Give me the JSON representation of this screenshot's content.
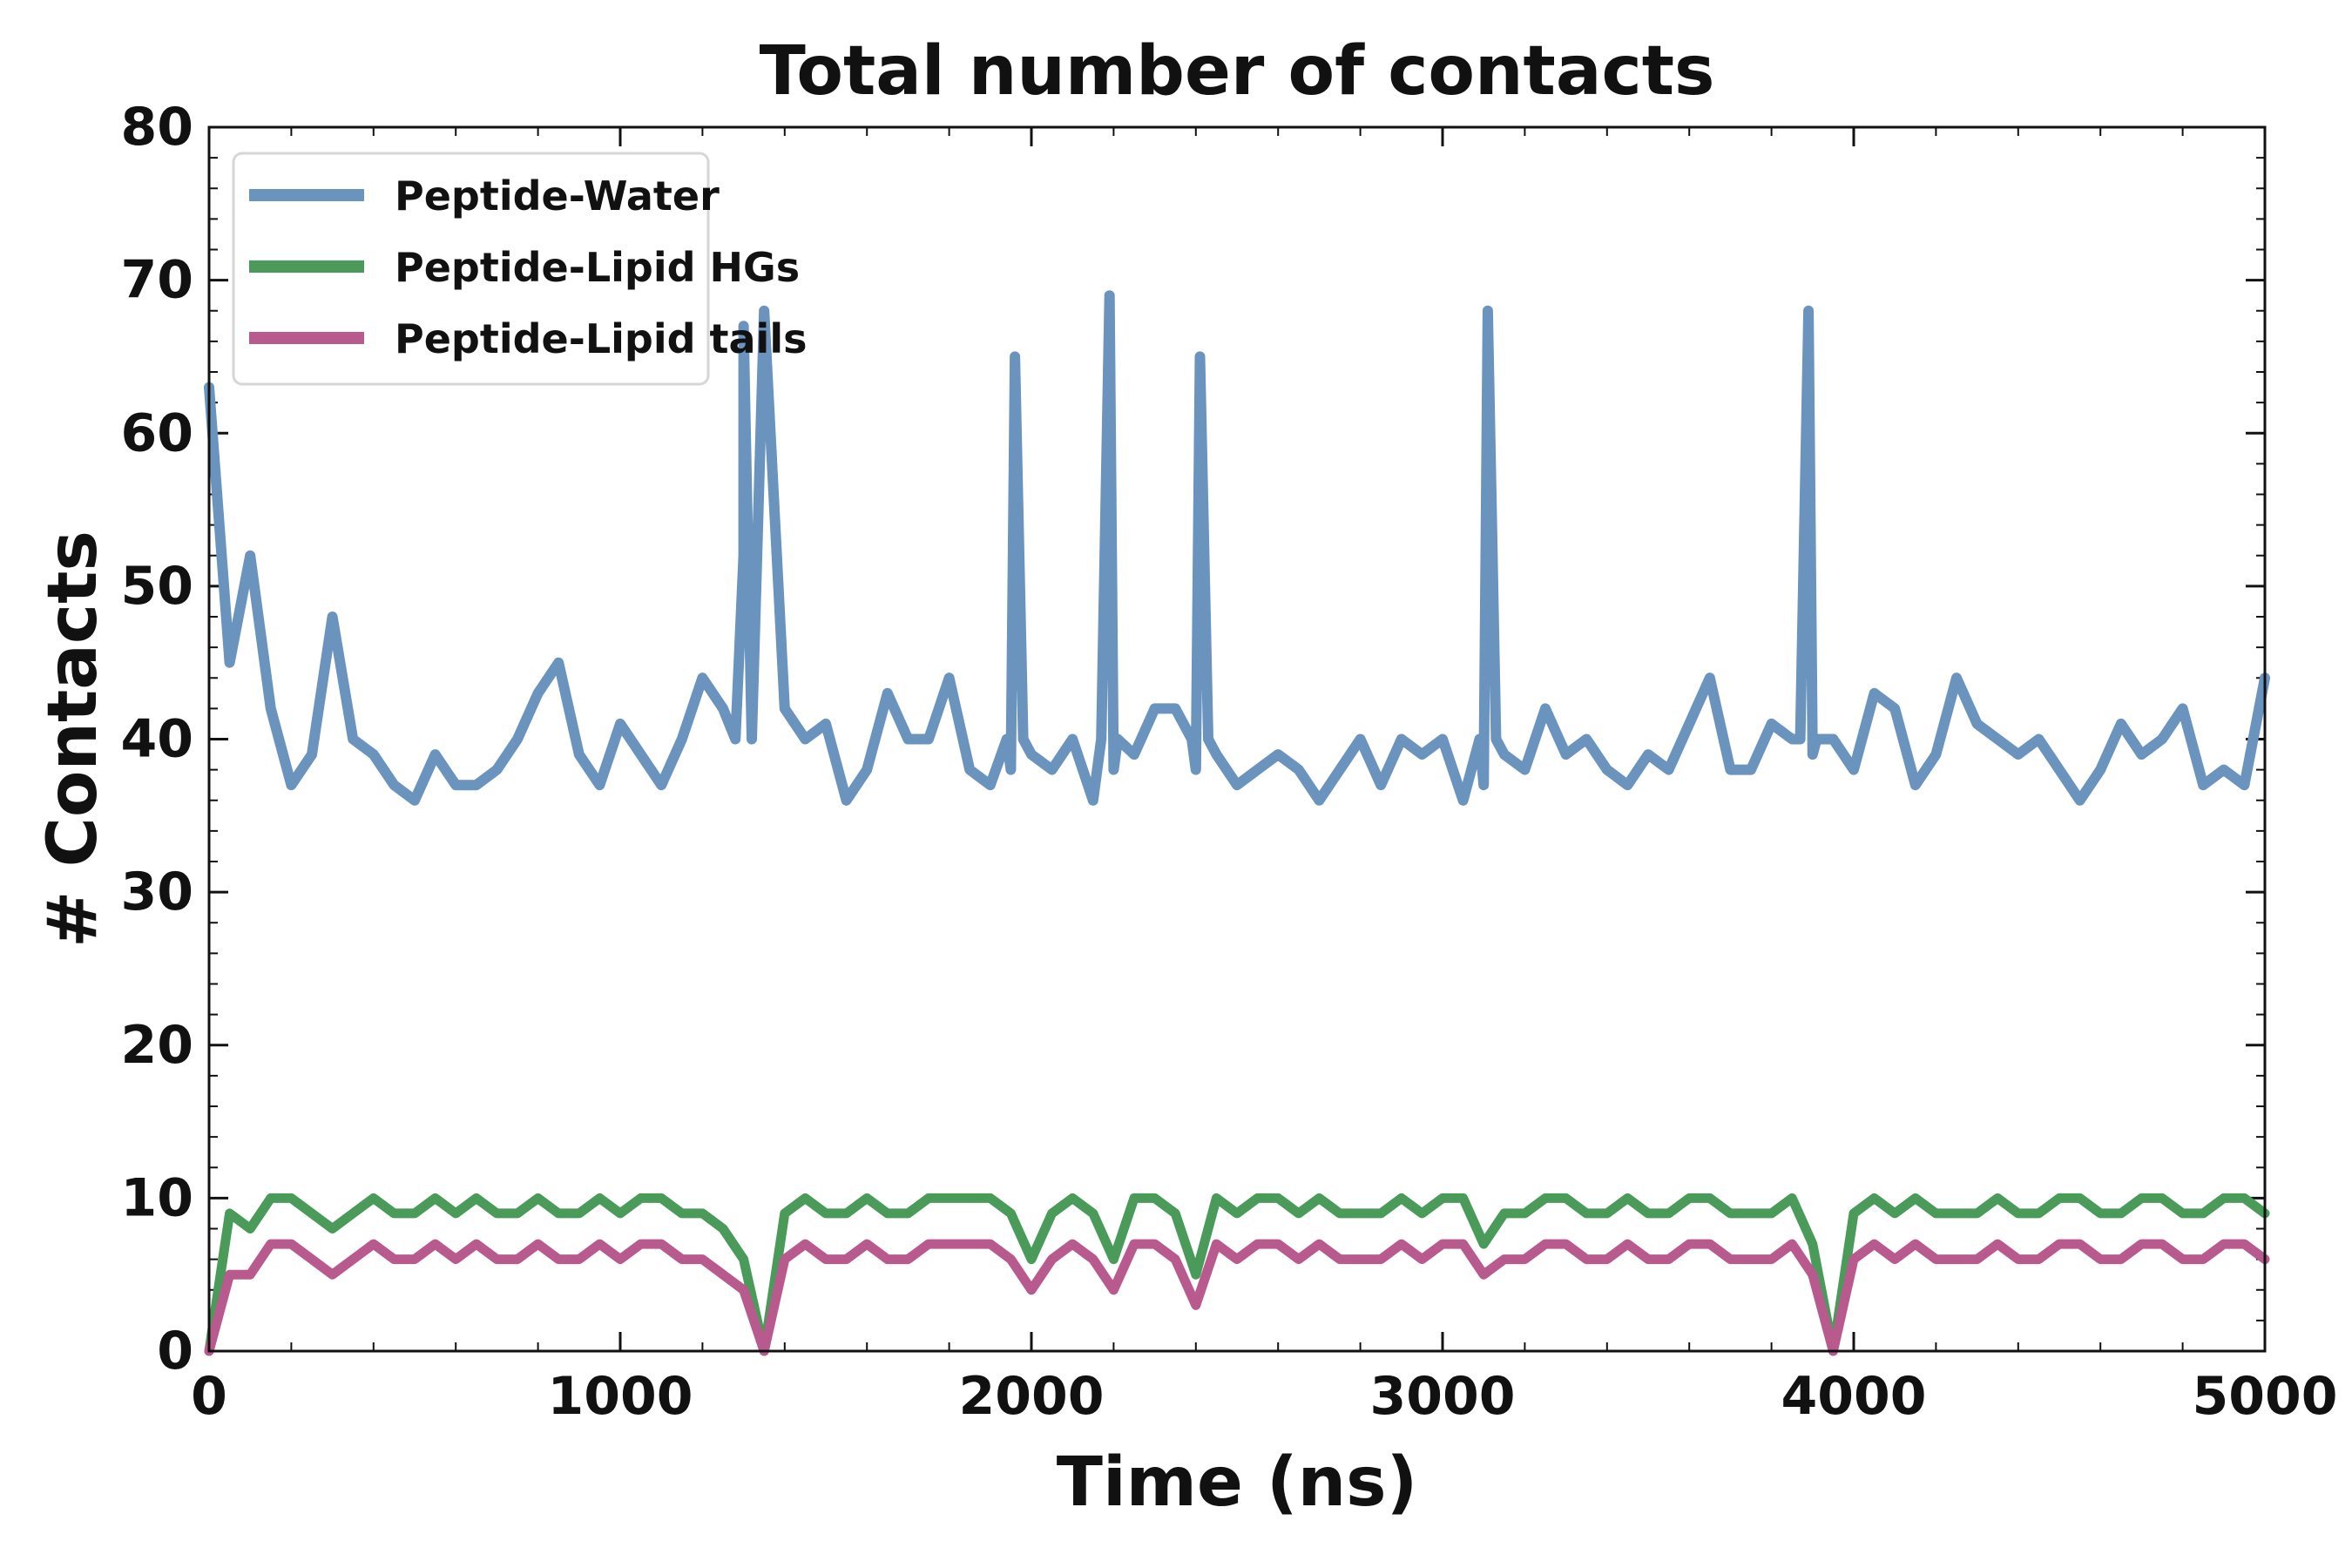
{
  "chart_data": {
    "type": "line",
    "title": "Total number of contacts",
    "xlabel": "Time (ns)",
    "ylabel": "# Contacts",
    "xlim": [
      0,
      5000
    ],
    "ylim": [
      0,
      80
    ],
    "xticks": [
      0,
      1000,
      2000,
      3000,
      4000,
      5000
    ],
    "yticks": [
      0,
      10,
      20,
      30,
      40,
      50,
      60,
      70,
      80
    ],
    "grid": false,
    "legend_location": "top-left",
    "x": [
      0,
      50,
      100,
      150,
      200,
      250,
      300,
      350,
      400,
      450,
      500,
      550,
      600,
      650,
      700,
      750,
      800,
      850,
      900,
      950,
      1000,
      1050,
      1100,
      1150,
      1200,
      1250,
      1300,
      1350,
      1400,
      1450,
      1500,
      1550,
      1600,
      1650,
      1700,
      1750,
      1800,
      1850,
      1900,
      1950,
      2000,
      2050,
      2100,
      2150,
      2200,
      2250,
      2300,
      2350,
      2400,
      2450,
      2500,
      2550,
      2600,
      2650,
      2700,
      2750,
      2800,
      2850,
      2900,
      2950,
      3000,
      3050,
      3100,
      3150,
      3200,
      3250,
      3300,
      3350,
      3400,
      3450,
      3500,
      3550,
      3600,
      3650,
      3700,
      3750,
      3800,
      3850,
      3900,
      3950,
      4000,
      4050,
      4100,
      4150,
      4200,
      4250,
      4300,
      4350,
      4400,
      4450,
      4500,
      4550,
      4600,
      4650,
      4700,
      4750,
      4800,
      4850,
      4900,
      4950,
      5000
    ],
    "series": [
      {
        "name": "Peptide-Water",
        "color": "#6a93bd",
        "values": [
          63,
          45,
          52,
          42,
          37,
          39,
          48,
          40,
          39,
          37,
          36,
          39,
          37,
          37,
          38,
          40,
          43,
          45,
          39,
          37,
          41,
          39,
          37,
          40,
          44,
          42,
          52,
          68,
          42,
          40,
          41,
          36,
          38,
          43,
          40,
          40,
          44,
          38,
          37,
          38,
          39,
          38,
          40,
          36,
          38,
          39,
          42,
          42,
          38,
          39,
          37,
          38,
          39,
          38,
          36,
          38,
          40,
          37,
          40,
          39,
          40,
          36,
          37,
          39,
          38,
          42,
          39,
          40,
          38,
          37,
          39,
          38,
          41,
          44,
          38,
          38,
          41,
          40,
          39,
          40,
          38,
          43,
          42,
          37,
          39,
          44,
          41,
          40,
          39,
          40,
          38,
          36,
          38,
          41,
          39,
          40,
          42,
          37,
          38,
          37,
          44
        ],
        "spikes": [
          [
            1300,
            67
          ],
          [
            1960,
            65
          ],
          [
            2190,
            69
          ],
          [
            2410,
            65
          ],
          [
            3110,
            68
          ],
          [
            3890,
            68
          ]
        ]
      },
      {
        "name": "Peptide-Lipid HGs",
        "color": "#4a9a5a",
        "values": [
          0,
          9,
          8,
          10,
          10,
          9,
          8,
          9,
          10,
          9,
          9,
          10,
          9,
          10,
          9,
          9,
          10,
          9,
          9,
          10,
          9,
          10,
          10,
          9,
          9,
          8,
          6,
          0,
          9,
          10,
          9,
          9,
          10,
          9,
          9,
          10,
          10,
          10,
          10,
          9,
          6,
          9,
          10,
          9,
          6,
          10,
          10,
          9,
          5,
          10,
          9,
          10,
          10,
          9,
          10,
          9,
          9,
          9,
          10,
          9,
          10,
          10,
          7,
          9,
          9,
          10,
          10,
          9,
          9,
          10,
          9,
          9,
          10,
          10,
          9,
          9,
          9,
          10,
          7,
          0,
          9,
          10,
          9,
          10,
          9,
          9,
          9,
          10,
          9,
          9,
          10,
          10,
          9,
          9,
          10,
          10,
          9,
          9,
          10,
          10,
          9
        ]
      },
      {
        "name": "Peptide-Lipid tails",
        "color": "#b85a8e",
        "values": [
          0,
          5,
          5,
          7,
          7,
          6,
          5,
          6,
          7,
          6,
          6,
          7,
          6,
          7,
          6,
          6,
          7,
          6,
          6,
          7,
          6,
          7,
          7,
          6,
          6,
          5,
          4,
          0,
          6,
          7,
          6,
          6,
          7,
          6,
          6,
          7,
          7,
          7,
          7,
          6,
          4,
          6,
          7,
          6,
          4,
          7,
          7,
          6,
          3,
          7,
          6,
          7,
          7,
          6,
          7,
          6,
          6,
          6,
          7,
          6,
          7,
          7,
          5,
          6,
          6,
          7,
          7,
          6,
          6,
          7,
          6,
          6,
          7,
          7,
          6,
          6,
          6,
          7,
          5,
          0,
          6,
          7,
          6,
          7,
          6,
          6,
          6,
          7,
          6,
          6,
          7,
          7,
          6,
          6,
          7,
          7,
          6,
          6,
          7,
          7,
          6
        ]
      }
    ]
  }
}
